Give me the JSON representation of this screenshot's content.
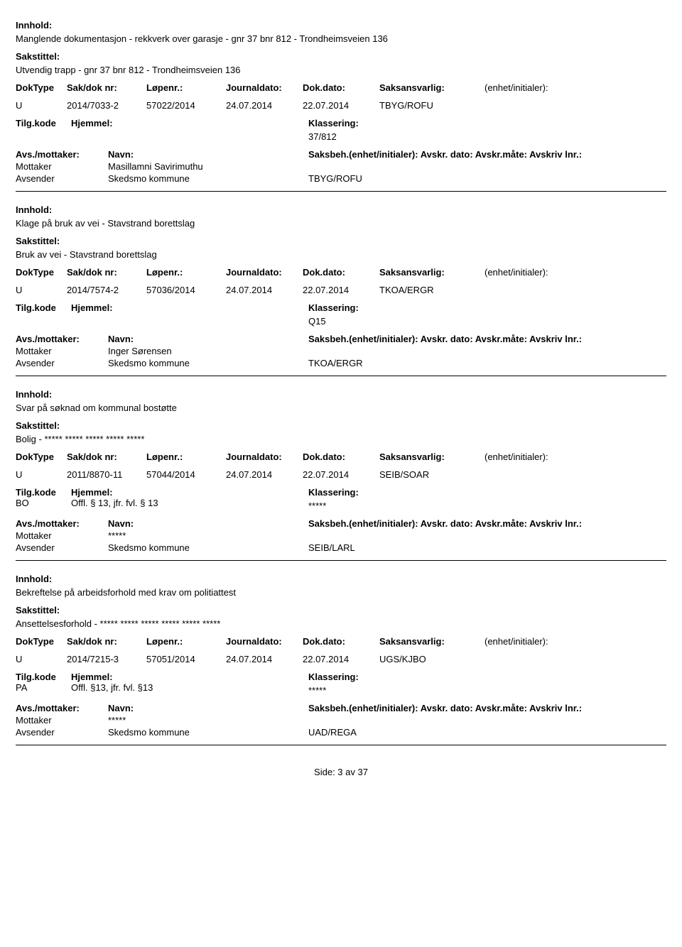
{
  "labels": {
    "innhold": "Innhold:",
    "sakstittel": "Sakstittel:",
    "doktype": "DokType",
    "sakdok": "Sak/dok nr:",
    "lopennr": "Løpenr.:",
    "jdate": "Journaldato:",
    "ddate": "Dok.dato:",
    "ansvarlig": "Saksansvarlig:",
    "enhet": "(enhet/initialer):",
    "tilgkode": "Tilg.kode",
    "hjemmel": "Hjemmel:",
    "klassering": "Klassering:",
    "avsmottaker": "Avs./mottaker:",
    "navn": "Navn:",
    "saksbeh": "Saksbeh.(enhet/initialer): Avskr. dato:  Avskr.måte:  Avskriv lnr.:",
    "mottaker": "Mottaker",
    "avsender": "Avsender"
  },
  "records": [
    {
      "innhold": "Manglende dokumentasjon - rekkverk over garasje - gnr 37 bnr 812 - Trondheimsveien 136",
      "sakstittel": "Utvendig trapp - gnr 37 bnr 812 - Trondheimsveien 136",
      "doktype": "U",
      "sakdok": "2014/7033-2",
      "lopennr": "57022/2014",
      "jdate": "24.07.2014",
      "ddate": "22.07.2014",
      "ansvarlig": "TBYG/ROFU",
      "tilgkode": "",
      "hjemmel": "",
      "klassering": "37/812",
      "mottaker_navn": "Masillamni Savirimuthu",
      "avsender_navn": "Skedsmo kommune",
      "avsender_ref": "TBYG/ROFU"
    },
    {
      "innhold": "Klage på bruk av vei - Stavstrand borettslag",
      "sakstittel": "Bruk av vei - Stavstrand borettslag",
      "doktype": "U",
      "sakdok": "2014/7574-2",
      "lopennr": "57036/2014",
      "jdate": "24.07.2014",
      "ddate": "22.07.2014",
      "ansvarlig": "TKOA/ERGR",
      "tilgkode": "",
      "hjemmel": "",
      "klassering": "Q15",
      "mottaker_navn": "Inger Sørensen",
      "avsender_navn": "Skedsmo kommune",
      "avsender_ref": "TKOA/ERGR"
    },
    {
      "innhold": "Svar på søknad om kommunal bostøtte",
      "sakstittel": "Bolig - ***** ***** ***** ***** *****",
      "doktype": "U",
      "sakdok": "2011/8870-11",
      "lopennr": "57044/2014",
      "jdate": "24.07.2014",
      "ddate": "22.07.2014",
      "ansvarlig": "SEIB/SOAR",
      "tilgkode": "BO",
      "hjemmel": "Offl. § 13, jfr. fvl. § 13",
      "klassering": "*****",
      "mottaker_navn": "*****",
      "avsender_navn": "Skedsmo kommune",
      "avsender_ref": "SEIB/LARL"
    },
    {
      "innhold": "Bekreftelse på arbeidsforhold med krav om politiattest",
      "sakstittel": "Ansettelsesforhold - ***** ***** ***** ***** ***** *****",
      "doktype": "U",
      "sakdok": "2014/7215-3",
      "lopennr": "57051/2014",
      "jdate": "24.07.2014",
      "ddate": "22.07.2014",
      "ansvarlig": "UGS/KJBO",
      "tilgkode": "PA",
      "hjemmel": "Offl. §13, jfr. fvl. §13",
      "klassering": "*****",
      "mottaker_navn": "*****",
      "avsender_navn": "Skedsmo kommune",
      "avsender_ref": "UAD/REGA"
    }
  ],
  "footer": "Side: 3 av 37"
}
